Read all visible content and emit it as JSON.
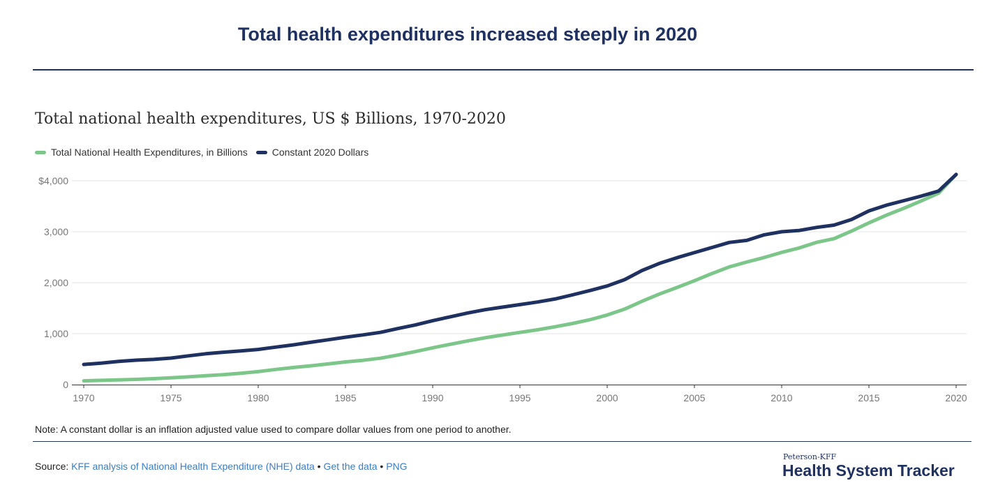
{
  "header": {
    "title": "Total health expenditures increased steeply in 2020"
  },
  "colors": {
    "navy": "#1f3160",
    "green": "#7cc68a",
    "grid": "#e6e6e6",
    "link": "#3a7dc9"
  },
  "chart_data": {
    "type": "line",
    "title": "Total national health expenditures, US $ Billions, 1970-2020",
    "xlabel": "",
    "ylabel": "",
    "xlim": [
      1970,
      2020
    ],
    "ylim": [
      0,
      4000
    ],
    "x_ticks": [
      "1970",
      "1975",
      "1980",
      "1985",
      "1990",
      "1995",
      "2000",
      "2005",
      "2010",
      "2015",
      "2020"
    ],
    "y_ticks": [
      "0",
      "1,000",
      "2,000",
      "3,000",
      "$4,000"
    ],
    "grid": true,
    "legend_position": "top-left",
    "x": [
      1970,
      1971,
      1972,
      1973,
      1974,
      1975,
      1976,
      1977,
      1978,
      1979,
      1980,
      1981,
      1982,
      1983,
      1984,
      1985,
      1986,
      1987,
      1988,
      1989,
      1990,
      1991,
      1992,
      1993,
      1994,
      1995,
      1996,
      1997,
      1998,
      1999,
      2000,
      2001,
      2002,
      2003,
      2004,
      2005,
      2006,
      2007,
      2008,
      2009,
      2010,
      2011,
      2012,
      2013,
      2014,
      2015,
      2016,
      2017,
      2018,
      2019,
      2020
    ],
    "series": [
      {
        "name": "Total National Health Expenditures, in Billions",
        "color": "#7cc68a",
        "values": [
          74,
          83,
          93,
          103,
          116,
          133,
          152,
          174,
          196,
          223,
          255,
          297,
          335,
          369,
          405,
          445,
          477,
          518,
          580,
          648,
          722,
          790,
          857,
          919,
          972,
          1024,
          1076,
          1134,
          1198,
          1273,
          1366,
          1482,
          1635,
          1778,
          1906,
          2039,
          2180,
          2310,
          2405,
          2495,
          2595,
          2681,
          2792,
          2864,
          3012,
          3174,
          3325,
          3460,
          3605,
          3757,
          4124
        ]
      },
      {
        "name": "Constant 2020 Dollars",
        "color": "#1f3160",
        "values": [
          396,
          420,
          455,
          480,
          495,
          520,
          565,
          605,
          635,
          660,
          690,
          735,
          780,
          830,
          880,
          930,
          975,
          1025,
          1100,
          1170,
          1255,
          1330,
          1405,
          1470,
          1520,
          1570,
          1620,
          1680,
          1760,
          1845,
          1935,
          2060,
          2240,
          2380,
          2490,
          2590,
          2690,
          2790,
          2830,
          2940,
          3000,
          3025,
          3085,
          3130,
          3240,
          3410,
          3520,
          3610,
          3700,
          3800,
          4124
        ]
      }
    ]
  },
  "note": "Note: A constant dollar is an inflation adjusted value used to compare dollar values from one period to another.",
  "source": {
    "prefix": "Source: ",
    "link1": "KFF analysis of National Health Expenditure (NHE) data",
    "sep1": " • ",
    "link2": "Get the data",
    "sep2": " • ",
    "link3": "PNG"
  },
  "brand": {
    "small": "Peterson-KFF",
    "big": "Health System Tracker"
  }
}
